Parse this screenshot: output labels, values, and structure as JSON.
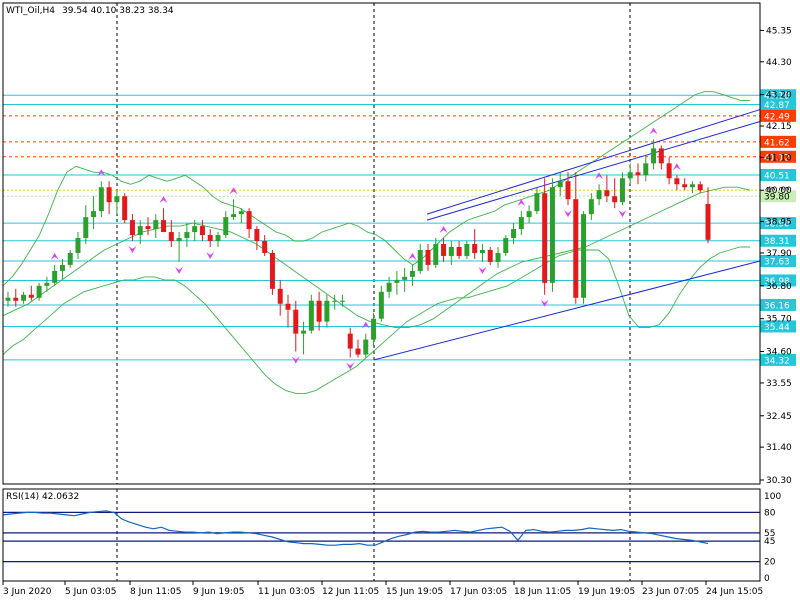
{
  "header": {
    "symbol": "WTI_Oil,H4",
    "ohlc": "39.54 40.10 38.23 38.34"
  },
  "rsi_header": "RSI(14) 42.0632",
  "colors": {
    "bull": "#2ca02c",
    "bear": "#e31a1c",
    "hline": "#26c6da",
    "resistance": "#ff3d00",
    "bands": "#3cb44b",
    "channel": "#1f2ad4",
    "fractal": "#e040fb",
    "rsi": "#1565c0",
    "rsi_level": "#0d1b7a"
  },
  "chart_data": [
    {
      "type": "candlestick",
      "title": "WTI_Oil,H4",
      "ylim": [
        30.3,
        46.0
      ],
      "price_ticks": [
        "45.35",
        "44.30",
        "43.20",
        "42.15",
        "41.10",
        "40.00",
        "38.95",
        "37.90",
        "36.80",
        "35.70",
        "34.60",
        "33.55",
        "32.45",
        "31.40",
        "30.30"
      ],
      "time_labels": [
        "3 Jun 2020",
        "5 Jun 03:05",
        "8 Jun 11:05",
        "9 Jun 19:05",
        "11 Jun 03:05",
        "12 Jun 11:05",
        "15 Jun 19:05",
        "17 Jun 03:05",
        "18 Jun 11:05",
        "19 Jun 19:05",
        "23 Jun 07:05",
        "24 Jun 15:05"
      ],
      "vertical_markers": [
        "5 Jun 03:05",
        "12 Jun 11:05",
        "19 Jun 19:05"
      ],
      "horizontal_levels": [
        {
          "price": 43.18,
          "label": "43.18",
          "kind": "support"
        },
        {
          "price": 42.87,
          "label": "42.87",
          "kind": "support"
        },
        {
          "price": 42.49,
          "label": "42.49",
          "kind": "resistance"
        },
        {
          "price": 41.62,
          "label": "41.62",
          "kind": "resistance"
        },
        {
          "price": 41.12,
          "label": "41.12",
          "kind": "resistance"
        },
        {
          "price": 40.51,
          "label": "40.51",
          "kind": "support"
        },
        {
          "price": 38.9,
          "label": "38.90",
          "kind": "support"
        },
        {
          "price": 38.31,
          "label": "38.31",
          "kind": "support"
        },
        {
          "price": 37.63,
          "label": "37.63",
          "kind": "support"
        },
        {
          "price": 36.98,
          "label": "36.98",
          "kind": "support"
        },
        {
          "price": 36.16,
          "label": "36.16",
          "kind": "support"
        },
        {
          "price": 35.44,
          "label": "35.44",
          "kind": "support"
        },
        {
          "price": 34.32,
          "label": "34.32",
          "kind": "support"
        }
      ],
      "bid_level": {
        "price": 40.0,
        "label": "40.00"
      },
      "ask_level": {
        "price": 39.8,
        "label": "39.80"
      },
      "candles": [
        [
          36.3,
          36.6,
          36.1,
          36.4
        ],
        [
          36.4,
          36.7,
          36.1,
          36.3
        ],
        [
          36.3,
          36.6,
          36.2,
          36.5
        ],
        [
          36.5,
          36.8,
          36.3,
          36.4
        ],
        [
          36.4,
          36.9,
          36.3,
          36.8
        ],
        [
          36.8,
          37.1,
          36.6,
          36.9
        ],
        [
          36.9,
          37.5,
          36.8,
          37.3
        ],
        [
          37.3,
          37.7,
          37.0,
          37.5
        ],
        [
          37.5,
          38.0,
          37.4,
          37.9
        ],
        [
          37.9,
          38.6,
          37.7,
          38.4
        ],
        [
          38.4,
          39.5,
          38.2,
          39.1
        ],
        [
          39.1,
          39.8,
          38.7,
          39.3
        ],
        [
          39.3,
          40.3,
          39.1,
          40.1
        ],
        [
          40.1,
          40.3,
          39.2,
          39.6
        ],
        [
          39.6,
          40.0,
          39.2,
          39.8
        ],
        [
          39.8,
          39.9,
          38.9,
          39.0
        ],
        [
          39.0,
          39.2,
          38.3,
          38.5
        ],
        [
          38.5,
          39.0,
          38.2,
          38.8
        ],
        [
          38.8,
          39.1,
          38.5,
          38.7
        ],
        [
          38.7,
          39.2,
          38.4,
          39.0
        ],
        [
          39.0,
          39.4,
          38.7,
          38.6
        ],
        [
          38.6,
          39.0,
          38.1,
          38.3
        ],
        [
          38.3,
          38.6,
          37.6,
          38.4
        ],
        [
          38.4,
          38.9,
          38.1,
          38.6
        ],
        [
          38.6,
          39.0,
          38.3,
          38.8
        ],
        [
          38.8,
          39.0,
          38.3,
          38.5
        ],
        [
          38.5,
          38.7,
          38.1,
          38.3
        ],
        [
          38.3,
          38.6,
          38.1,
          38.5
        ],
        [
          38.5,
          39.3,
          38.4,
          39.1
        ],
        [
          39.1,
          39.7,
          39.0,
          39.2
        ],
        [
          39.2,
          39.4,
          38.9,
          39.3
        ],
        [
          39.3,
          39.4,
          38.4,
          38.7
        ],
        [
          38.7,
          38.8,
          38.0,
          38.3
        ],
        [
          38.3,
          38.5,
          37.8,
          37.9
        ],
        [
          37.9,
          38.0,
          36.5,
          36.7
        ],
        [
          36.7,
          37.0,
          35.8,
          36.2
        ],
        [
          36.2,
          36.5,
          35.4,
          36.0
        ],
        [
          36.0,
          36.3,
          34.6,
          35.2
        ],
        [
          35.2,
          35.6,
          34.5,
          35.3
        ],
        [
          35.3,
          36.5,
          35.2,
          36.3
        ],
        [
          36.3,
          36.6,
          35.3,
          35.6
        ],
        [
          35.6,
          36.5,
          35.4,
          36.3
        ],
        [
          36.3,
          36.5,
          36.0,
          36.3
        ],
        [
          36.3,
          36.5,
          36.1,
          36.3
        ],
        [
          35.2,
          35.4,
          34.4,
          34.7
        ],
        [
          34.7,
          35.0,
          34.4,
          34.5
        ],
        [
          34.5,
          35.2,
          34.4,
          35.0
        ],
        [
          35.0,
          35.9,
          34.8,
          35.7
        ],
        [
          35.7,
          36.8,
          35.6,
          36.6
        ],
        [
          36.6,
          37.1,
          36.4,
          36.9
        ],
        [
          36.9,
          37.3,
          36.5,
          37.0
        ],
        [
          37.0,
          37.4,
          36.6,
          37.1
        ],
        [
          37.1,
          37.5,
          36.8,
          37.3
        ],
        [
          37.3,
          38.2,
          37.2,
          38.0
        ],
        [
          38.0,
          38.2,
          37.3,
          37.5
        ],
        [
          37.5,
          38.4,
          37.4,
          38.2
        ],
        [
          38.2,
          38.4,
          37.6,
          37.8
        ],
        [
          37.8,
          38.3,
          37.5,
          38.1
        ],
        [
          38.1,
          38.3,
          37.7,
          37.8
        ],
        [
          37.8,
          38.3,
          37.7,
          38.2
        ],
        [
          38.2,
          38.7,
          37.7,
          37.9
        ],
        [
          37.9,
          38.2,
          37.6,
          38.0
        ],
        [
          38.0,
          38.1,
          37.5,
          37.6
        ],
        [
          37.6,
          38.1,
          37.4,
          37.9
        ],
        [
          37.9,
          38.5,
          37.8,
          38.4
        ],
        [
          38.4,
          38.9,
          38.2,
          38.7
        ],
        [
          38.7,
          39.3,
          38.5,
          39.1
        ],
        [
          39.1,
          39.5,
          38.9,
          39.3
        ],
        [
          39.3,
          40.1,
          39.2,
          39.9
        ],
        [
          39.9,
          40.4,
          36.5,
          36.9
        ],
        [
          36.9,
          40.4,
          36.6,
          40.1
        ],
        [
          40.1,
          40.6,
          39.8,
          40.3
        ],
        [
          40.3,
          40.6,
          39.5,
          39.7
        ],
        [
          39.7,
          40.6,
          36.2,
          36.4
        ],
        [
          36.4,
          39.3,
          36.2,
          39.2
        ],
        [
          39.2,
          39.9,
          39.0,
          39.7
        ],
        [
          39.7,
          40.2,
          39.5,
          40.0
        ],
        [
          40.0,
          40.5,
          39.6,
          39.8
        ],
        [
          39.8,
          40.4,
          39.4,
          39.6
        ],
        [
          39.6,
          40.6,
          39.5,
          40.4
        ],
        [
          40.4,
          40.9,
          40.2,
          40.6
        ],
        [
          40.6,
          40.9,
          40.2,
          40.5
        ],
        [
          40.5,
          41.1,
          40.3,
          40.9
        ],
        [
          40.9,
          41.7,
          40.7,
          41.4
        ],
        [
          41.4,
          41.5,
          40.7,
          40.9
        ],
        [
          40.9,
          41.1,
          40.2,
          40.4
        ],
        [
          40.4,
          40.5,
          40.0,
          40.2
        ],
        [
          40.2,
          40.4,
          40.0,
          40.1
        ],
        [
          40.1,
          40.3,
          39.9,
          40.2
        ],
        [
          40.2,
          40.3,
          39.9,
          40.0
        ],
        [
          39.54,
          40.1,
          38.23,
          38.34
        ]
      ],
      "upper_band": [
        36.8,
        37.1,
        37.5,
        38.0,
        38.5,
        39.2,
        40.0,
        40.6,
        40.8,
        40.7,
        40.6,
        40.6,
        40.5,
        40.3,
        40.2,
        40.3,
        40.5,
        40.4,
        40.3,
        40.4,
        40.5,
        40.3,
        40.1,
        39.8,
        39.6,
        39.5,
        39.4,
        39.2,
        39.0,
        38.8,
        38.6,
        38.5,
        38.3,
        38.3,
        38.4,
        38.6,
        38.7,
        38.8,
        38.9,
        38.8,
        38.6,
        38.5,
        38.3,
        38.0,
        37.7,
        37.5,
        37.7,
        38.0,
        38.3,
        38.6,
        38.8,
        39.0,
        39.1,
        39.2,
        39.3,
        39.5,
        39.6,
        39.7,
        39.8,
        39.9,
        40.0,
        40.2,
        40.4,
        40.6,
        40.8,
        41.0,
        41.2,
        41.4,
        41.6,
        41.8,
        42.0,
        42.2,
        42.4,
        42.6,
        42.8,
        43.0,
        43.2,
        43.3,
        43.3,
        43.2,
        43.1,
        43.0,
        43.0
      ],
      "lower_band": [
        34.5,
        34.8,
        35.0,
        35.3,
        35.6,
        35.9,
        36.2,
        36.4,
        36.6,
        36.7,
        36.8,
        36.9,
        37.0,
        37.0,
        37.1,
        37.1,
        37.0,
        37.0,
        36.8,
        36.5,
        36.2,
        35.8,
        35.4,
        35.0,
        34.6,
        34.2,
        33.8,
        33.5,
        33.3,
        33.2,
        33.2,
        33.3,
        33.5,
        33.7,
        33.9,
        34.1,
        34.4,
        34.7,
        35.0,
        35.3,
        35.6,
        35.8,
        36.0,
        36.2,
        36.3,
        36.4,
        36.4,
        36.5,
        36.6,
        36.7,
        36.8,
        37.0,
        37.2,
        37.4,
        37.6,
        37.8,
        37.9,
        38.0,
        38.0,
        38.0,
        37.7,
        36.8,
        35.8,
        35.4,
        35.4,
        35.5,
        35.9,
        36.5,
        37.0,
        37.4,
        37.7,
        37.9,
        38.0,
        38.1,
        38.1
      ],
      "middle_band": [
        35.8,
        36.0,
        36.2,
        36.5,
        36.8,
        37.1,
        37.4,
        37.7,
        38.0,
        38.2,
        38.4,
        38.6,
        38.7,
        38.8,
        38.8,
        38.9,
        38.8,
        38.7,
        38.6,
        38.4,
        38.2,
        37.9,
        37.6,
        37.3,
        37.0,
        36.7,
        36.4,
        36.1,
        35.8,
        35.6,
        35.5,
        35.4,
        35.4,
        35.5,
        35.7,
        36.0,
        36.3,
        36.6,
        36.9,
        37.2,
        37.4,
        37.6,
        37.7,
        37.8,
        37.9,
        38.0,
        38.1,
        38.3,
        38.5,
        38.7,
        38.9,
        39.1,
        39.3,
        39.5,
        39.7,
        39.9,
        40.0,
        40.1,
        40.1,
        40.0
      ],
      "channel_lines": [
        {
          "from": [
            "12 Jun 11:05",
            34.32
          ],
          "to": [
            "24 Jun 15:05",
            37.63
          ]
        },
        {
          "from": [
            "15 Jun 19:05",
            39.0
          ],
          "to": [
            "24 Jun 15:05",
            42.3
          ]
        },
        {
          "from": [
            "17 Jun 03:05",
            39.2
          ],
          "to": [
            "24 Jun 15:05",
            42.7
          ]
        }
      ]
    },
    {
      "type": "line",
      "title": "RSI(14) 42.0632",
      "ylim": [
        0,
        100
      ],
      "ticks": [
        "100",
        "80",
        "55",
        "45",
        "20",
        "0"
      ],
      "levels": [
        80,
        55,
        45,
        20
      ],
      "values": [
        77,
        78,
        79,
        80,
        80,
        79,
        79,
        78,
        77,
        76,
        78,
        80,
        81,
        82,
        80,
        72,
        68,
        65,
        62,
        60,
        62,
        58,
        57,
        56,
        56,
        55,
        56,
        54,
        55,
        56,
        56,
        55,
        54,
        52,
        50,
        47,
        44,
        43,
        42,
        42,
        41,
        40,
        40,
        41,
        41,
        42,
        40,
        40,
        44,
        48,
        51,
        53,
        56,
        57,
        56,
        56,
        57,
        58,
        57,
        56,
        58,
        60,
        61,
        62,
        57,
        46,
        58,
        59,
        57,
        56,
        57,
        58,
        58,
        59,
        61,
        60,
        59,
        58,
        59,
        57,
        56,
        55,
        54,
        52,
        50,
        48,
        47,
        46,
        44,
        42
      ]
    }
  ]
}
